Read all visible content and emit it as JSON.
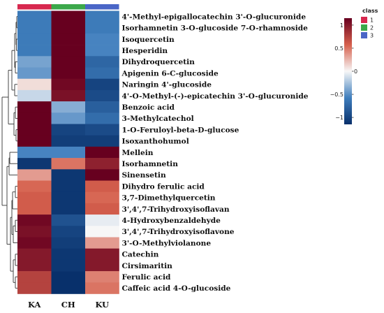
{
  "chart_data": {
    "type": "heatmap",
    "columns": [
      "KA",
      "CH",
      "KU"
    ],
    "column_classes": [
      "1",
      "2",
      "3"
    ],
    "rows": [
      "4'-Methyl-epigallocatechin 3'-O-glucuronide",
      "Isorhamnetin 3-O-glucoside 7-O-rhamnoside",
      "Isoquercetin",
      "Hesperidin",
      "Dihydroquercetin",
      "Apigenin 6-C-glucoside",
      "Naringin 4'-glucoside",
      "4'-O-Methyl-(-)-epicatechin 3'-O-glucuronide",
      "Benzoic acid",
      "3-Methylcatechol",
      "1-O-Feruloyl-beta-D-glucose",
      "Isoxanthohumol",
      "Mellein",
      "Isorhamnetin",
      "Sinensetin",
      "Dihydro ferulic acid",
      "3,7-Dimethylquercetin",
      "3',4',7-Trihydroxyisoflavan",
      "4-Hydroxybenzaldehyde",
      "3',4',7-Trihydroxyisoflavone",
      "3'-O-Methylviolanone",
      "Catechin",
      "Cirsimaritin",
      "Ferulic acid",
      "Caffeic acid 4-O-glucoside"
    ],
    "values": [
      [
        -0.6,
        1.15,
        -0.6
      ],
      [
        -0.6,
        1.15,
        -0.6
      ],
      [
        -0.6,
        1.15,
        -0.55
      ],
      [
        -0.6,
        1.15,
        -0.55
      ],
      [
        -0.4,
        1.15,
        -0.75
      ],
      [
        -0.45,
        1.15,
        -0.7
      ],
      [
        0.1,
        1.1,
        -1.0
      ],
      [
        -0.15,
        1.05,
        -0.95
      ],
      [
        1.15,
        -0.35,
        -0.8
      ],
      [
        1.15,
        -0.45,
        -0.7
      ],
      [
        1.15,
        -1.0,
        -0.95
      ],
      [
        1.15,
        -1.05,
        -1.05
      ],
      [
        -0.55,
        -0.55,
        1.15
      ],
      [
        -1.1,
        0.5,
        0.95
      ],
      [
        0.35,
        -1.1,
        1.15
      ],
      [
        0.55,
        -1.1,
        0.6
      ],
      [
        0.6,
        -1.1,
        0.55
      ],
      [
        0.6,
        -1.1,
        0.6
      ],
      [
        1.1,
        -0.9,
        -0.05
      ],
      [
        1.05,
        -1.0,
        0.0
      ],
      [
        1.1,
        -1.05,
        0.35
      ],
      [
        1.0,
        -1.1,
        1.0
      ],
      [
        1.0,
        -1.1,
        1.0
      ],
      [
        0.75,
        -1.15,
        0.45
      ],
      [
        0.75,
        -1.15,
        0.5
      ]
    ],
    "scale": {
      "min": -1.15,
      "max": 1.15,
      "ticks": [
        1,
        0.5,
        0,
        -0.5,
        -1
      ],
      "tick_labels": [
        "1",
        "0.5",
        "0",
        "−0.5",
        "−1"
      ],
      "colors": [
        "#08306b",
        "#3f7ebd",
        "#f7f7f7",
        "#d6604d",
        "#67001f"
      ]
    },
    "class_legend": {
      "title": "class",
      "items": [
        {
          "label": "1",
          "color": "#d7284f"
        },
        {
          "label": "2",
          "color": "#3ba84a"
        },
        {
          "label": "3",
          "color": "#4a66c7"
        }
      ]
    },
    "dendrogram": "row clustering shown on left"
  }
}
